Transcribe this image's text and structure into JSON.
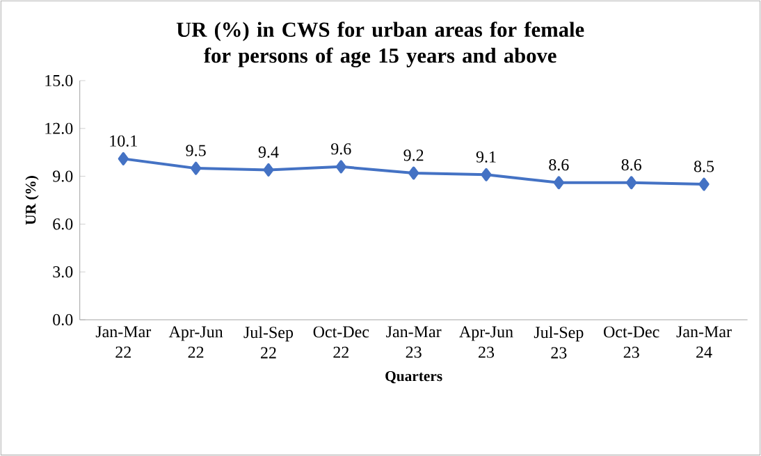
{
  "chart_data": {
    "type": "line",
    "title": "UR (%) in CWS for urban areas for female for persons of age 15 years and above",
    "xlabel": "Quarters",
    "ylabel": "UR (%)",
    "categories": [
      "Jan-Mar 22",
      "Apr-Jun 22",
      "Jul-Sep 22",
      "Oct-Dec 22",
      "Jan-Mar 23",
      "Apr-Jun 23",
      "Jul-Sep 23",
      "Oct-Dec 23",
      "Jan-Mar 24"
    ],
    "series": [
      {
        "color": "#4472c4",
        "values": [
          10.1,
          9.5,
          9.4,
          9.6,
          9.2,
          9.1,
          8.6,
          8.6,
          8.5
        ]
      }
    ],
    "ylim": [
      0,
      15
    ],
    "yticks": [
      {
        "value": 0,
        "label": "0.0"
      },
      {
        "value": 3,
        "label": "3.0"
      },
      {
        "value": 6,
        "label": "6.0"
      },
      {
        "value": 9,
        "label": "9.0"
      },
      {
        "value": 12,
        "label": "12.0"
      },
      {
        "value": 15,
        "label": "15.0"
      }
    ],
    "marker": "diamond",
    "line_style": "solid",
    "data_labels": true,
    "grid": false
  }
}
